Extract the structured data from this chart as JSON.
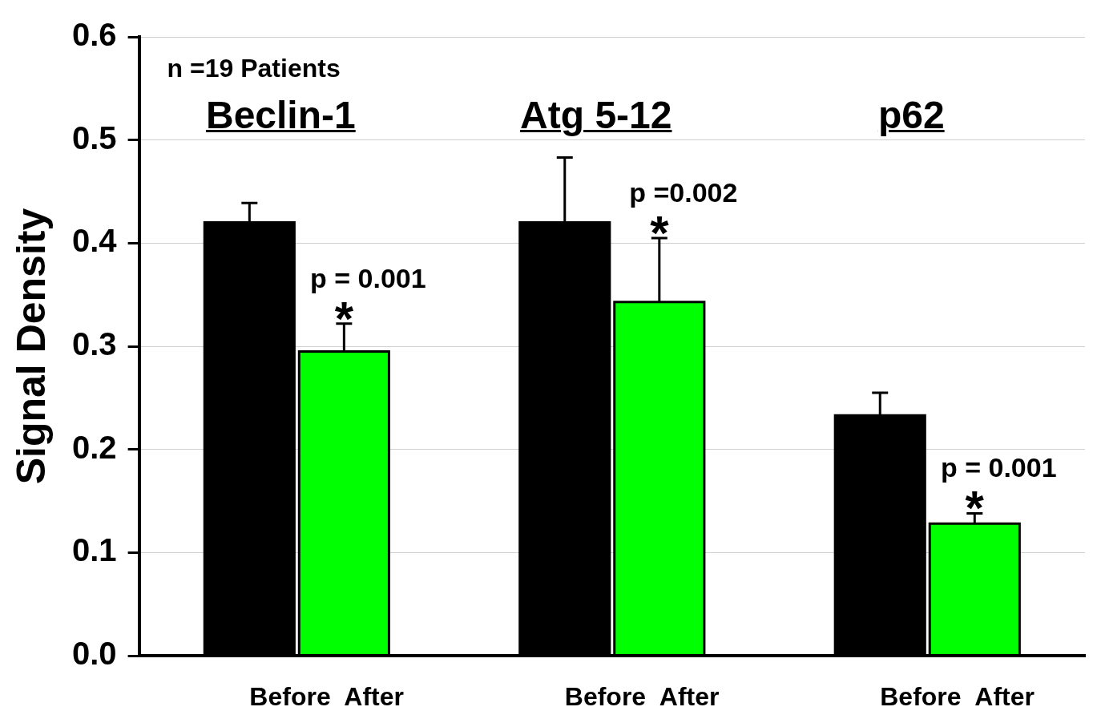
{
  "chart_data": {
    "type": "bar",
    "ylabel": "Signal Density",
    "categories": [
      "Beclin-1",
      "Atg 5-12",
      "p62"
    ],
    "series": [
      {
        "name": "Before",
        "color": "#000000",
        "values": [
          0.42,
          0.42,
          0.233
        ],
        "errors": [
          [
            0.42,
            0.439
          ],
          [
            0.42,
            0.483
          ],
          [
            0.233,
            0.255
          ]
        ]
      },
      {
        "name": "After",
        "color": "#00ff00",
        "values": [
          0.295,
          0.343,
          0.128
        ],
        "errors": [
          [
            0.295,
            0.322
          ],
          [
            0.343,
            0.405
          ],
          [
            0.128,
            0.138
          ]
        ]
      }
    ],
    "ylim": [
      0,
      0.6
    ],
    "yticks": [
      {
        "value": 0,
        "label": "0.0"
      },
      0.1,
      0.2,
      0.3,
      0.4,
      0.5,
      0.6
    ],
    "grid": "y",
    "legend": false,
    "annotations": [
      "n =19 Patients",
      "p = 0.001",
      "*",
      "p =0.002",
      "*",
      "p = 0.001",
      "*"
    ]
  }
}
